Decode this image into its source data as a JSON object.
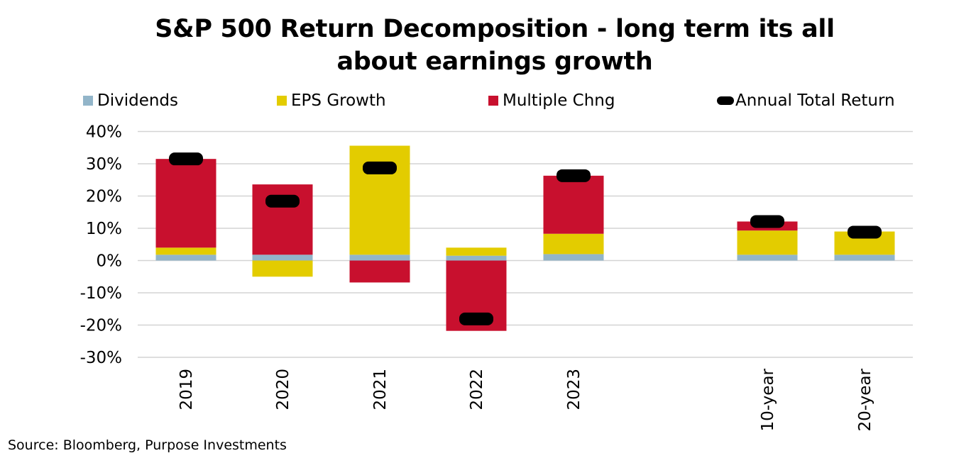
{
  "chart_data": {
    "type": "bar",
    "stacked": true,
    "title_lines": [
      "S&P 500 Return Decomposition - long term its all",
      "about earnings growth"
    ],
    "categories": [
      "2019",
      "2020",
      "2021",
      "2022",
      "2023",
      "10-year",
      "20-year"
    ],
    "series": [
      {
        "name": "Dividends",
        "color": "#92b5c9",
        "values": [
          1.8,
          1.8,
          1.8,
          1.5,
          2.0,
          1.8,
          1.8
        ]
      },
      {
        "name": "EPS Growth",
        "color": "#e3cc00",
        "values": [
          2.2,
          -5.0,
          33.8,
          2.5,
          6.3,
          7.5,
          7.2
        ]
      },
      {
        "name": "Multiple Chng",
        "color": "#c8102e",
        "values": [
          27.5,
          21.8,
          -6.8,
          -21.8,
          18.0,
          2.8,
          0
        ]
      }
    ],
    "markers": {
      "name": "Annual Total Return",
      "color": "#000000",
      "values": [
        31.5,
        18.4,
        28.7,
        -18.1,
        26.3,
        12.1,
        8.8
      ]
    },
    "yticks": [
      "40%",
      "30%",
      "20%",
      "10%",
      "0%",
      "-10%",
      "-20%",
      "-30%"
    ],
    "ytick_values": [
      40,
      30,
      20,
      10,
      0,
      -10,
      -20,
      -30
    ],
    "ylim": [
      -30,
      40
    ],
    "grid": true,
    "legend_position": "top",
    "source": "Source: Bloomberg, Purpose Investments"
  }
}
